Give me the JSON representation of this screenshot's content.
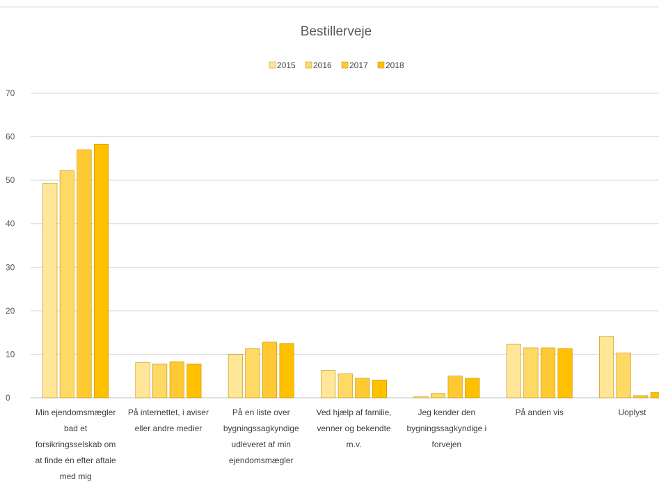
{
  "chart_data": {
    "type": "bar",
    "title": "Bestillerveje",
    "categories": [
      [
        "Min ejendomsmægler",
        "bad et",
        "forsikringsselskab om",
        "at finde én efter aftale",
        "med mig"
      ],
      [
        "På internettet, i aviser",
        "eller andre medier"
      ],
      [
        "På en liste over",
        "bygningssagkyndige",
        "udleveret af min",
        "ejendomsmægler"
      ],
      [
        "Ved hjælp af familie,",
        "venner og bekendte",
        "m.v."
      ],
      [
        "Jeg kender den",
        "bygningssagkyndige i",
        "forvejen"
      ],
      [
        "På anden vis"
      ],
      [
        "Uoplyst"
      ]
    ],
    "series": [
      {
        "name": "2015",
        "color": "#ffe699",
        "values": [
          49.3,
          8.1,
          10.0,
          6.3,
          0.3,
          12.3,
          14.1
        ]
      },
      {
        "name": "2016",
        "color": "#ffd966",
        "values": [
          52.2,
          7.8,
          11.3,
          5.5,
          1.0,
          11.5,
          10.3
        ]
      },
      {
        "name": "2017",
        "color": "#ffc933",
        "values": [
          57.0,
          8.3,
          12.8,
          4.5,
          5.0,
          11.5,
          0.5
        ]
      },
      {
        "name": "2018",
        "color": "#ffc000",
        "values": [
          58.3,
          7.8,
          12.5,
          4.1,
          4.5,
          11.3,
          1.2
        ]
      }
    ],
    "ylim": [
      0,
      70
    ],
    "yticks": [
      0,
      10,
      20,
      30,
      40,
      50,
      60,
      70
    ],
    "legend_position": "top-center",
    "grid": true
  }
}
